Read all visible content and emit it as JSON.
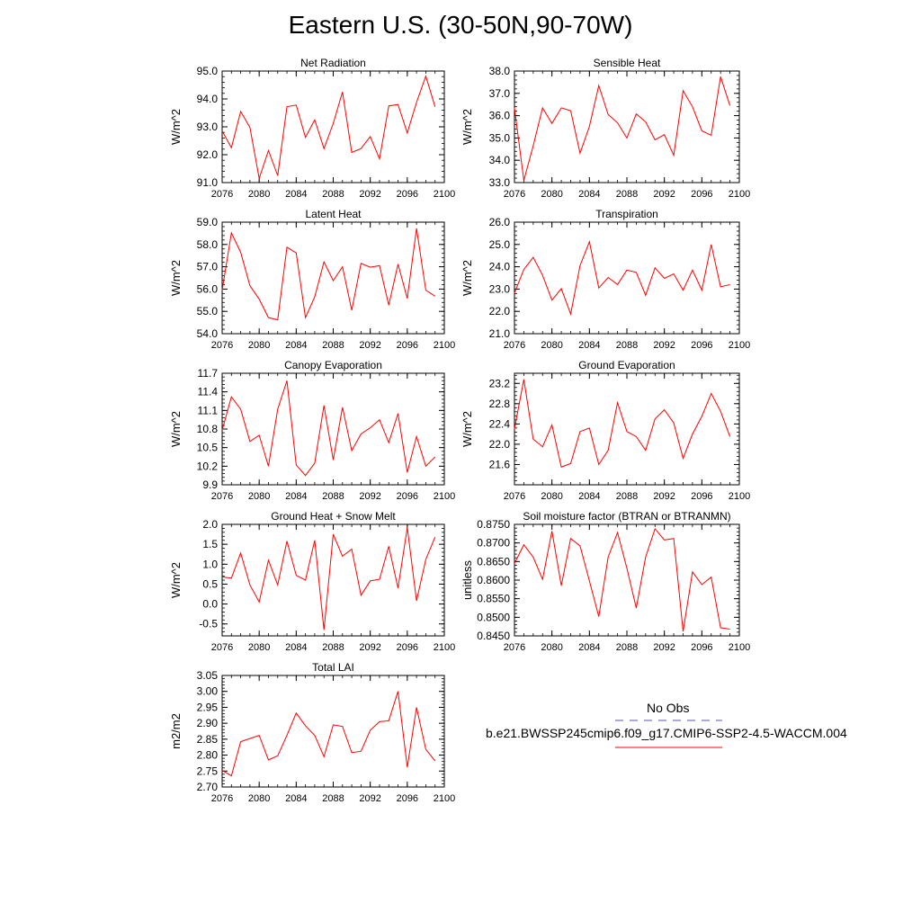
{
  "title": "Eastern U.S. (30-50N,90-70W)",
  "legend": {
    "obs_label": "No Obs",
    "obs_color": "#5555aa",
    "model_label": "b.e21.BWSSP245cmip6.f09_g17.CMIP6-SSP2-4.5-WACCM.004",
    "model_color": "#ff0000"
  },
  "chart_data": [
    {
      "type": "line",
      "title": "Net Radiation",
      "ylabel": "W/m^2",
      "xlim": [
        2076,
        2100
      ],
      "ylim": [
        91.0,
        95.0
      ],
      "xticks": [
        2076,
        2080,
        2084,
        2088,
        2092,
        2096,
        2100
      ],
      "yticks": [
        "91.0",
        "92.0",
        "93.0",
        "94.0",
        "95.0"
      ],
      "x": [
        2076,
        2077,
        2078,
        2079,
        2080,
        2081,
        2082,
        2083,
        2084,
        2085,
        2086,
        2087,
        2088,
        2089,
        2090,
        2091,
        2092,
        2093,
        2094,
        2095,
        2096,
        2097,
        2098,
        2099
      ],
      "y": [
        92.85,
        92.25,
        93.55,
        92.98,
        91.15,
        92.15,
        91.25,
        93.72,
        93.78,
        92.62,
        93.25,
        92.22,
        93.12,
        94.25,
        92.08,
        92.22,
        92.65,
        91.85,
        93.75,
        93.8,
        92.78,
        93.88,
        94.82,
        93.72
      ]
    },
    {
      "type": "line",
      "title": "Sensible Heat",
      "ylabel": "W/m^2",
      "xlim": [
        2076,
        2100
      ],
      "ylim": [
        33.0,
        38.0
      ],
      "xticks": [
        2076,
        2080,
        2084,
        2088,
        2092,
        2096,
        2100
      ],
      "yticks": [
        "33.0",
        "34.0",
        "35.0",
        "36.0",
        "37.0",
        "38.0"
      ],
      "x": [
        2076,
        2077,
        2078,
        2079,
        2080,
        2081,
        2082,
        2083,
        2084,
        2085,
        2086,
        2087,
        2088,
        2089,
        2090,
        2091,
        2092,
        2093,
        2094,
        2095,
        2096,
        2097,
        2098,
        2099
      ],
      "y": [
        36.35,
        33.1,
        34.65,
        36.35,
        35.65,
        36.35,
        36.22,
        34.32,
        35.52,
        37.35,
        36.05,
        35.68,
        35.0,
        36.08,
        35.72,
        34.92,
        35.15,
        34.22,
        37.12,
        36.4,
        35.32,
        35.12,
        37.75,
        36.45
      ]
    },
    {
      "type": "line",
      "title": "Latent Heat",
      "ylabel": "W/m^2",
      "xlim": [
        2076,
        2100
      ],
      "ylim": [
        54.0,
        59.0
      ],
      "xticks": [
        2076,
        2080,
        2084,
        2088,
        2092,
        2096,
        2100
      ],
      "yticks": [
        "54.0",
        "55.0",
        "56.0",
        "57.0",
        "58.0",
        "59.0"
      ],
      "x": [
        2076,
        2077,
        2078,
        2079,
        2080,
        2081,
        2082,
        2083,
        2084,
        2085,
        2086,
        2087,
        2088,
        2089,
        2090,
        2091,
        2092,
        2093,
        2094,
        2095,
        2096,
        2097,
        2098,
        2099
      ],
      "y": [
        55.95,
        58.52,
        57.65,
        56.15,
        55.55,
        54.72,
        54.62,
        57.88,
        57.62,
        54.72,
        55.65,
        57.22,
        56.38,
        57.0,
        55.05,
        57.15,
        56.98,
        57.05,
        55.28,
        57.12,
        55.58,
        58.72,
        55.95,
        55.68
      ]
    },
    {
      "type": "line",
      "title": "Transpiration",
      "ylabel": "W/m^2",
      "xlim": [
        2076,
        2100
      ],
      "ylim": [
        21.0,
        26.0
      ],
      "xticks": [
        2076,
        2080,
        2084,
        2088,
        2092,
        2096,
        2100
      ],
      "yticks": [
        "21.0",
        "22.0",
        "23.0",
        "24.0",
        "25.0",
        "26.0"
      ],
      "x": [
        2076,
        2077,
        2078,
        2079,
        2080,
        2081,
        2082,
        2083,
        2084,
        2085,
        2086,
        2087,
        2088,
        2089,
        2090,
        2091,
        2092,
        2093,
        2094,
        2095,
        2096,
        2097,
        2098,
        2099
      ],
      "y": [
        22.82,
        23.88,
        24.42,
        23.62,
        22.5,
        23.02,
        21.88,
        24.05,
        25.12,
        23.05,
        23.52,
        23.2,
        23.85,
        23.75,
        22.72,
        23.95,
        23.48,
        23.68,
        22.95,
        23.85,
        22.95,
        25.0,
        23.1,
        23.2
      ]
    },
    {
      "type": "line",
      "title": "Canopy Evaporation",
      "ylabel": "W/m^2",
      "xlim": [
        2076,
        2100
      ],
      "ylim": [
        9.9,
        11.7
      ],
      "xticks": [
        2076,
        2080,
        2084,
        2088,
        2092,
        2096,
        2100
      ],
      "yticks": [
        "9.9",
        "10.2",
        "10.5",
        "10.8",
        "11.1",
        "11.4",
        "11.7"
      ],
      "x": [
        2076,
        2077,
        2078,
        2079,
        2080,
        2081,
        2082,
        2083,
        2084,
        2085,
        2086,
        2087,
        2088,
        2089,
        2090,
        2091,
        2092,
        2093,
        2094,
        2095,
        2096,
        2097,
        2098,
        2099
      ],
      "y": [
        10.78,
        11.32,
        11.12,
        10.6,
        10.7,
        10.2,
        11.12,
        11.58,
        10.22,
        10.05,
        10.25,
        11.18,
        10.3,
        11.15,
        10.45,
        10.72,
        10.82,
        10.95,
        10.58,
        11.05,
        10.1,
        10.68,
        10.2,
        10.35
      ]
    },
    {
      "type": "line",
      "title": "Ground Evaporation",
      "ylabel": "W/m^2",
      "xlim": [
        2076,
        2100
      ],
      "ylim": [
        21.2,
        23.4
      ],
      "xticks": [
        2076,
        2080,
        2084,
        2088,
        2092,
        2096,
        2100
      ],
      "yticks": [
        "21.6",
        "22.0",
        "22.4",
        "22.8",
        "23.2"
      ],
      "x": [
        2076,
        2077,
        2078,
        2079,
        2080,
        2081,
        2082,
        2083,
        2084,
        2085,
        2086,
        2087,
        2088,
        2089,
        2090,
        2091,
        2092,
        2093,
        2094,
        2095,
        2096,
        2097,
        2098,
        2099
      ],
      "y": [
        22.3,
        23.28,
        22.1,
        21.95,
        22.38,
        21.55,
        21.62,
        22.25,
        22.32,
        21.6,
        21.88,
        22.82,
        22.25,
        22.15,
        21.88,
        22.5,
        22.68,
        22.42,
        21.72,
        22.2,
        22.55,
        23.0,
        22.65,
        22.15
      ]
    },
    {
      "type": "line",
      "title": "Ground Heat + Snow Melt",
      "ylabel": "W/m^2",
      "xlim": [
        2076,
        2100
      ],
      "ylim": [
        -0.8,
        2.0
      ],
      "xticks": [
        2076,
        2080,
        2084,
        2088,
        2092,
        2096,
        2100
      ],
      "yticks": [
        "-0.5",
        "0.0",
        "0.5",
        "1.0",
        "1.5",
        "2.0"
      ],
      "x": [
        2076,
        2077,
        2078,
        2079,
        2080,
        2081,
        2082,
        2083,
        2084,
        2085,
        2086,
        2087,
        2088,
        2089,
        2090,
        2091,
        2092,
        2093,
        2094,
        2095,
        2096,
        2097,
        2098,
        2099
      ],
      "y": [
        0.68,
        0.65,
        1.28,
        0.48,
        0.05,
        1.1,
        0.48,
        1.58,
        0.72,
        0.6,
        1.6,
        -0.65,
        1.75,
        1.2,
        1.38,
        0.22,
        0.58,
        0.62,
        1.45,
        0.4,
        1.92,
        0.08,
        1.12,
        1.68
      ]
    },
    {
      "type": "line",
      "title": "Soil moisture factor (BTRAN or BTRANMN)",
      "ylabel": "unitless",
      "xlim": [
        2076,
        2100
      ],
      "ylim": [
        0.845,
        0.875
      ],
      "xticks": [
        2076,
        2080,
        2084,
        2088,
        2092,
        2096,
        2100
      ],
      "yticks": [
        "0.8450",
        "0.8500",
        "0.8550",
        "0.8600",
        "0.8650",
        "0.8700",
        "0.8750"
      ],
      "x": [
        2076,
        2077,
        2078,
        2079,
        2080,
        2081,
        2082,
        2083,
        2084,
        2085,
        2086,
        2087,
        2088,
        2089,
        2090,
        2091,
        2092,
        2093,
        2094,
        2095,
        2096,
        2097,
        2098,
        2099
      ],
      "y": [
        0.8645,
        0.8695,
        0.8662,
        0.8602,
        0.8732,
        0.8585,
        0.8712,
        0.8692,
        0.8598,
        0.8502,
        0.8662,
        0.8728,
        0.8632,
        0.8525,
        0.8662,
        0.8738,
        0.8708,
        0.8712,
        0.8462,
        0.8622,
        0.8588,
        0.8608,
        0.8472,
        0.8468
      ]
    },
    {
      "type": "line",
      "title": "Total LAI",
      "ylabel": "m2/m2",
      "xlim": [
        2076,
        2100
      ],
      "ylim": [
        2.7,
        3.05
      ],
      "xticks": [
        2076,
        2080,
        2084,
        2088,
        2092,
        2096,
        2100
      ],
      "yticks": [
        "2.70",
        "2.75",
        "2.80",
        "2.85",
        "2.90",
        "2.95",
        "3.00",
        "3.05"
      ],
      "x": [
        2076,
        2077,
        2078,
        2079,
        2080,
        2081,
        2082,
        2083,
        2084,
        2085,
        2086,
        2087,
        2088,
        2089,
        2090,
        2091,
        2092,
        2093,
        2094,
        2095,
        2096,
        2097,
        2098,
        2099
      ],
      "y": [
        2.752,
        2.735,
        2.842,
        2.852,
        2.862,
        2.785,
        2.798,
        2.862,
        2.932,
        2.892,
        2.862,
        2.795,
        2.895,
        2.89,
        2.808,
        2.812,
        2.878,
        2.905,
        2.908,
        3.0,
        2.762,
        2.95,
        2.818,
        2.782
      ]
    }
  ]
}
